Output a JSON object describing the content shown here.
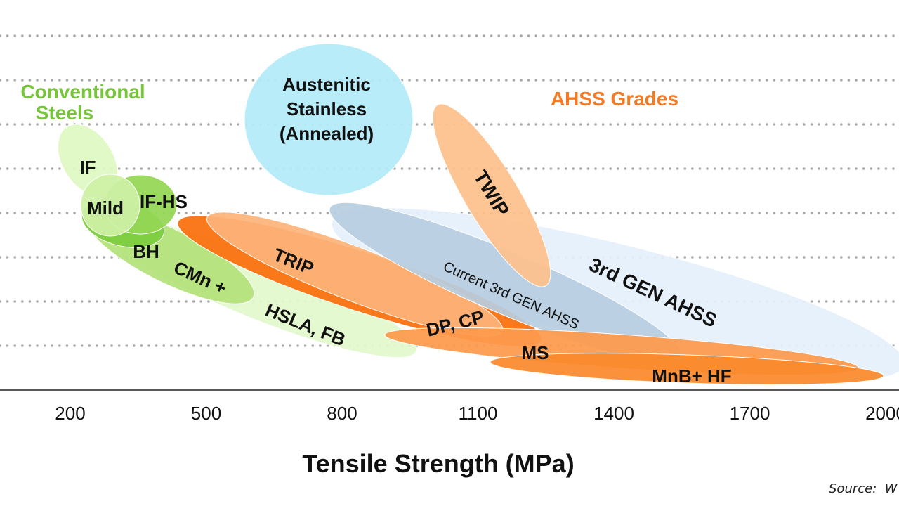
{
  "chart_data": {
    "type": "scatter",
    "subtype": "region-ellipses",
    "xlabel": "Tensile Strength (MPa)",
    "ylabel": "",
    "x_ticks": [
      200,
      500,
      800,
      1100,
      1400,
      1700,
      2000
    ],
    "x_tick_labels": [
      "200",
      "500",
      "800",
      "1100",
      "1400",
      "1700",
      "2000"
    ],
    "xlim": [
      200,
      2000
    ],
    "grid": "horizontal dotted",
    "group_labels": {
      "conventional": "Conventional Steels",
      "conventional_line1": "Conventional",
      "conventional_line2": "Steels",
      "ahss": "AHSS Grades"
    },
    "regions": [
      {
        "name": "HSLA, FB",
        "lines": [
          "HSLA, FB"
        ],
        "group": "conventional",
        "ts_range": [
          280,
          960
        ],
        "color": "#e2f9cc"
      },
      {
        "name": "IF",
        "lines": [
          "IF"
        ],
        "group": "conventional",
        "ts_range": [
          185,
          295
        ],
        "color": "#dff7c3"
      },
      {
        "name": "CMn +",
        "lines": [
          "CMn +"
        ],
        "group": "conventional",
        "ts_range": [
          230,
          610
        ],
        "color": "#b4e27a"
      },
      {
        "name": "BH",
        "lines": [
          "BH"
        ],
        "group": "conventional",
        "ts_range": [
          225,
          410
        ],
        "color": "#7ccc3c"
      },
      {
        "name": "IF-HS",
        "lines": [
          "IF-HS"
        ],
        "group": "conventional",
        "ts_range": [
          275,
          435
        ],
        "color": "#94d655"
      },
      {
        "name": "Mild",
        "lines": [
          "Mild"
        ],
        "group": "conventional",
        "ts_range": [
          225,
          355
        ],
        "color": "#cdf0a6"
      },
      {
        "name": "3rd GEN AHSS",
        "lines": [
          "3rd GEN AHSS"
        ],
        "group": "ahss",
        "ts_range": [
          765,
          2030
        ],
        "color": "#e4f0fb"
      },
      {
        "name": "Austenitic Stainless (Annealed)",
        "lines": [
          "Austenitic",
          "Stainless",
          "(Annealed)"
        ],
        "group": "other",
        "ts_range": [
          585,
          955
        ],
        "color": "#b3ebf8"
      },
      {
        "name": "DP, CP",
        "lines": [
          "DP, CP"
        ],
        "group": "ahss",
        "ts_range": [
          440,
          1240
        ],
        "color": "#fb6f0c"
      },
      {
        "name": "TRIP",
        "lines": [
          "TRIP"
        ],
        "group": "ahss",
        "ts_range": [
          500,
          1160
        ],
        "color": "#fdb47a"
      },
      {
        "name": "Current 3rd GEN AHSS",
        "lines": [
          "Current 3rd GEN AHSS"
        ],
        "group": "ahss",
        "ts_range": [
          765,
          1555
        ],
        "color": "#b7cde0"
      },
      {
        "name": "TWIP",
        "lines": [
          "TWIP"
        ],
        "group": "ahss",
        "ts_range": [
          960,
          1300
        ],
        "color": "#fdc18c"
      },
      {
        "name": "MS",
        "lines": [
          "MS"
        ],
        "group": "ahss",
        "ts_range": [
          895,
          1950
        ],
        "color": "#fd9a4c"
      },
      {
        "name": "MnB+ HF",
        "lines": [
          "MnB+ HF"
        ],
        "group": "ahss",
        "ts_range": [
          1130,
          1990
        ],
        "color": "#fb8a2c"
      }
    ],
    "source_note": "Source:  W"
  }
}
